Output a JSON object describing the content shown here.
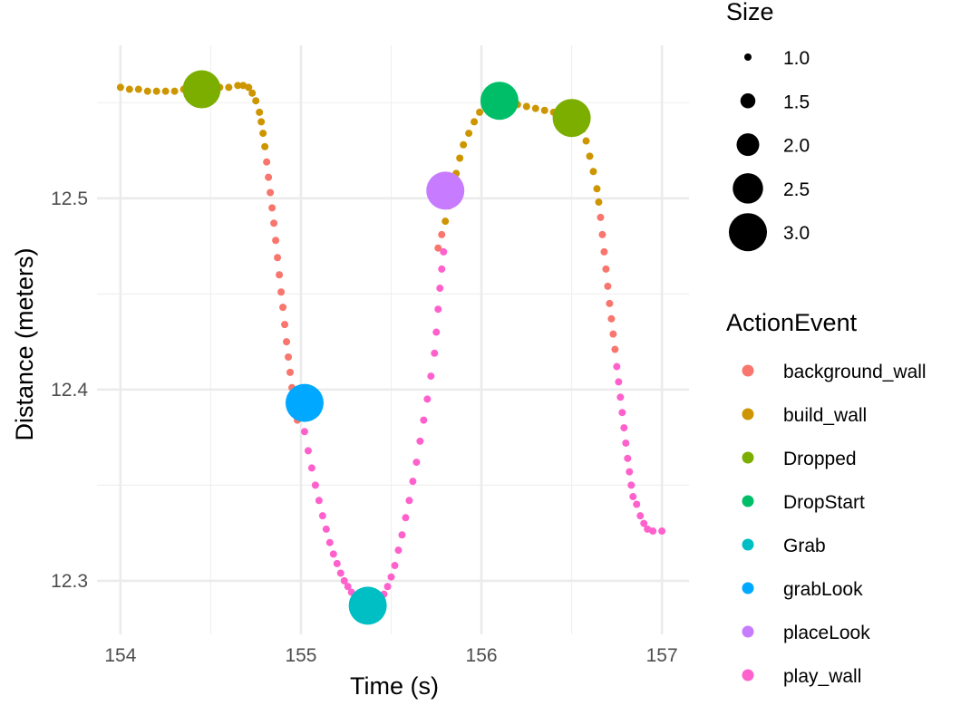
{
  "chart_data": {
    "type": "scatter",
    "xlabel": "Time (s)",
    "ylabel": "Distance (meters)",
    "xlim": [
      153.87,
      157.15
    ],
    "ylim": [
      12.272,
      12.58
    ],
    "x_ticks": [
      154,
      155,
      156,
      157
    ],
    "x_tick_labels": [
      "154",
      "155",
      "156",
      "157"
    ],
    "y_ticks": [
      12.3,
      12.4,
      12.5
    ],
    "y_tick_labels": [
      "12.3",
      "12.4",
      "12.5"
    ],
    "grid": true,
    "size_legend": {
      "title": "Size",
      "values": [
        1.0,
        1.5,
        2.0,
        2.5,
        3.0
      ],
      "labels": [
        "1.0",
        "1.5",
        "2.0",
        "2.5",
        "3.0"
      ]
    },
    "color_legend": {
      "title": "ActionEvent",
      "placement": "right",
      "entries": [
        {
          "name": "background_wall",
          "color": "#F8766D"
        },
        {
          "name": "build_wall",
          "color": "#CD9600"
        },
        {
          "name": "Dropped",
          "color": "#7CAE00"
        },
        {
          "name": "DropStart",
          "color": "#00BE67"
        },
        {
          "name": "Grab",
          "color": "#00BFC4"
        },
        {
          "name": "grabLook",
          "color": "#00A9FF"
        },
        {
          "name": "placeLook",
          "color": "#C77CFF"
        },
        {
          "name": "play_wall",
          "color": "#FF61CC"
        }
      ]
    },
    "series": [
      {
        "name": "build_wall",
        "color": "#CD9600",
        "size": 1.0,
        "points": [
          [
            154.0,
            12.558
          ],
          [
            154.05,
            12.557
          ],
          [
            154.1,
            12.557
          ],
          [
            154.15,
            12.556
          ],
          [
            154.2,
            12.556
          ],
          [
            154.25,
            12.556
          ],
          [
            154.3,
            12.556
          ],
          [
            154.35,
            12.557
          ],
          [
            154.4,
            12.557
          ],
          [
            154.45,
            12.557
          ],
          [
            154.5,
            12.558
          ],
          [
            154.55,
            12.558
          ],
          [
            154.6,
            12.558
          ],
          [
            154.65,
            12.559
          ],
          [
            154.68,
            12.559
          ],
          [
            154.71,
            12.558
          ],
          [
            154.73,
            12.555
          ],
          [
            154.75,
            12.551
          ],
          [
            154.77,
            12.545
          ],
          [
            154.78,
            12.54
          ],
          [
            154.79,
            12.534
          ],
          [
            154.8,
            12.527
          ],
          [
            155.8,
            12.488
          ],
          [
            155.82,
            12.496
          ],
          [
            155.84,
            12.505
          ],
          [
            155.86,
            12.513
          ],
          [
            155.88,
            12.521
          ],
          [
            155.9,
            12.528
          ],
          [
            155.93,
            12.534
          ],
          [
            155.96,
            12.54
          ],
          [
            155.99,
            12.545
          ],
          [
            156.02,
            12.548
          ],
          [
            156.06,
            12.55
          ],
          [
            156.1,
            12.551
          ],
          [
            156.15,
            12.55
          ],
          [
            156.2,
            12.549
          ],
          [
            156.25,
            12.548
          ],
          [
            156.3,
            12.547
          ],
          [
            156.35,
            12.546
          ],
          [
            156.4,
            12.545
          ],
          [
            156.45,
            12.544
          ],
          [
            156.5,
            12.543
          ],
          [
            156.53,
            12.541
          ],
          [
            156.56,
            12.536
          ],
          [
            156.58,
            12.53
          ],
          [
            156.6,
            12.522
          ],
          [
            156.62,
            12.514
          ],
          [
            156.64,
            12.505
          ],
          [
            156.65,
            12.498
          ]
        ]
      },
      {
        "name": "background_wall",
        "color": "#F8766D",
        "size": 1.0,
        "points": [
          [
            154.81,
            12.519
          ],
          [
            154.82,
            12.511
          ],
          [
            154.83,
            12.503
          ],
          [
            154.84,
            12.495
          ],
          [
            154.85,
            12.487
          ],
          [
            154.86,
            12.478
          ],
          [
            154.87,
            12.469
          ],
          [
            154.88,
            12.46
          ],
          [
            154.89,
            12.451
          ],
          [
            154.9,
            12.443
          ],
          [
            154.91,
            12.434
          ],
          [
            154.92,
            12.425
          ],
          [
            154.93,
            12.417
          ],
          [
            154.94,
            12.409
          ],
          [
            154.95,
            12.401
          ],
          [
            154.96,
            12.395
          ],
          [
            154.97,
            12.388
          ],
          [
            154.98,
            12.384
          ],
          [
            155.76,
            12.474
          ],
          [
            155.78,
            12.481
          ],
          [
            156.66,
            12.49
          ],
          [
            156.67,
            12.481
          ],
          [
            156.68,
            12.472
          ],
          [
            156.69,
            12.463
          ],
          [
            156.7,
            12.454
          ],
          [
            156.71,
            12.445
          ],
          [
            156.72,
            12.437
          ],
          [
            156.73,
            12.429
          ],
          [
            156.74,
            12.421
          ]
        ]
      },
      {
        "name": "play_wall",
        "color": "#FF61CC",
        "size": 1.0,
        "points": [
          [
            155.0,
            12.388
          ],
          [
            155.02,
            12.378
          ],
          [
            155.04,
            12.368
          ],
          [
            155.06,
            12.359
          ],
          [
            155.08,
            12.35
          ],
          [
            155.1,
            12.342
          ],
          [
            155.12,
            12.334
          ],
          [
            155.14,
            12.327
          ],
          [
            155.16,
            12.32
          ],
          [
            155.18,
            12.314
          ],
          [
            155.2,
            12.309
          ],
          [
            155.22,
            12.304
          ],
          [
            155.24,
            12.3
          ],
          [
            155.26,
            12.297
          ],
          [
            155.28,
            12.294
          ],
          [
            155.3,
            12.292
          ],
          [
            155.32,
            12.29
          ],
          [
            155.34,
            12.289
          ],
          [
            155.36,
            12.288
          ],
          [
            155.38,
            12.287
          ],
          [
            155.4,
            12.287
          ],
          [
            155.42,
            12.288
          ],
          [
            155.44,
            12.29
          ],
          [
            155.46,
            12.293
          ],
          [
            155.48,
            12.297
          ],
          [
            155.5,
            12.302
          ],
          [
            155.52,
            12.308
          ],
          [
            155.54,
            12.316
          ],
          [
            155.56,
            12.324
          ],
          [
            155.58,
            12.333
          ],
          [
            155.6,
            12.342
          ],
          [
            155.62,
            12.352
          ],
          [
            155.64,
            12.362
          ],
          [
            155.66,
            12.373
          ],
          [
            155.68,
            12.384
          ],
          [
            155.7,
            12.395
          ],
          [
            155.72,
            12.407
          ],
          [
            155.74,
            12.419
          ],
          [
            155.75,
            12.43
          ],
          [
            155.76,
            12.442
          ],
          [
            155.77,
            12.453
          ],
          [
            155.78,
            12.463
          ],
          [
            155.79,
            12.472
          ],
          [
            156.75,
            12.412
          ],
          [
            156.76,
            12.404
          ],
          [
            156.77,
            12.396
          ],
          [
            156.78,
            12.388
          ],
          [
            156.79,
            12.38
          ],
          [
            156.8,
            12.372
          ],
          [
            156.81,
            12.364
          ],
          [
            156.82,
            12.357
          ],
          [
            156.83,
            12.35
          ],
          [
            156.84,
            12.344
          ],
          [
            156.86,
            12.34
          ],
          [
            156.88,
            12.334
          ],
          [
            156.9,
            12.33
          ],
          [
            156.92,
            12.327
          ],
          [
            156.95,
            12.326
          ],
          [
            157.0,
            12.326
          ]
        ]
      },
      {
        "name": "Dropped",
        "color": "#7CAE00",
        "size": 3.0,
        "points": [
          [
            154.45,
            12.557
          ],
          [
            156.5,
            12.542
          ]
        ]
      },
      {
        "name": "DropStart",
        "color": "#00BE67",
        "size": 3.0,
        "points": [
          [
            156.1,
            12.551
          ]
        ]
      },
      {
        "name": "grabLook",
        "color": "#00A9FF",
        "size": 3.0,
        "points": [
          [
            155.02,
            12.393
          ]
        ]
      },
      {
        "name": "Grab",
        "color": "#00BFC4",
        "size": 3.0,
        "points": [
          [
            155.37,
            12.287
          ]
        ]
      },
      {
        "name": "placeLook",
        "color": "#C77CFF",
        "size": 3.0,
        "points": [
          [
            155.8,
            12.504
          ]
        ]
      }
    ]
  }
}
